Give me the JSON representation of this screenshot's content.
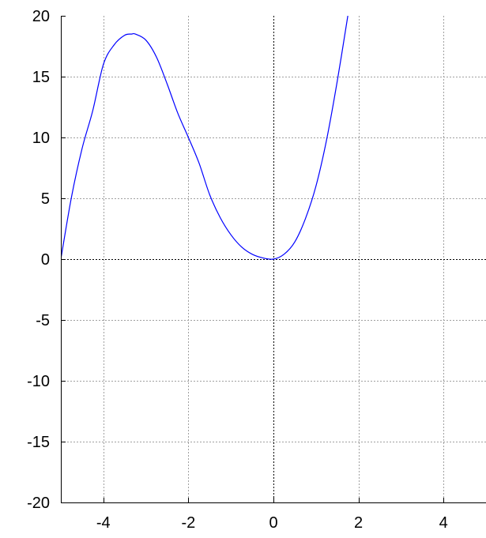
{
  "chart_data": {
    "type": "line",
    "title": "",
    "xlabel": "",
    "ylabel": "",
    "xlim": [
      -5,
      5
    ],
    "ylim": [
      -20,
      20
    ],
    "grid": true,
    "legend": "none",
    "x_ticks": [
      -4,
      -2,
      0,
      2,
      4
    ],
    "y_ticks": [
      -20,
      -15,
      -10,
      -5,
      0,
      5,
      10,
      15,
      20
    ],
    "x_tick_labels": [
      "-4",
      "-2",
      "0",
      "2",
      "4"
    ],
    "y_tick_labels": [
      "-20",
      "-15",
      "-10",
      "-5",
      "0",
      "5",
      "10",
      "15",
      "20"
    ],
    "series": [
      {
        "x": [
          -5.0,
          -4.75,
          -4.5,
          -4.25,
          -4.0,
          -3.75,
          -3.5,
          -3.333,
          -3.25,
          -3.0,
          -2.75,
          -2.5,
          -2.25,
          -2.0,
          -1.75,
          -1.5,
          -1.25,
          -1.0,
          -0.75,
          -0.5,
          -0.25,
          0.0,
          0.25,
          0.5,
          0.75,
          1.0,
          1.25,
          1.5,
          1.75
        ],
        "y": [
          0.0,
          5.1,
          9.1,
          12.2,
          16.0,
          17.6,
          18.4,
          18.5,
          18.5,
          18.0,
          16.6,
          14.4,
          12.0,
          10.0,
          7.9,
          5.3,
          3.4,
          2.0,
          1.0,
          0.4,
          0.1,
          0.0,
          0.4,
          1.4,
          3.3,
          6.0,
          9.8,
          14.6,
          20.0
        ]
      }
    ],
    "colors": {
      "series": "#0000ff",
      "grid": "#a0a0a0",
      "zero_lines": "#000000",
      "axes": "#000000"
    }
  }
}
